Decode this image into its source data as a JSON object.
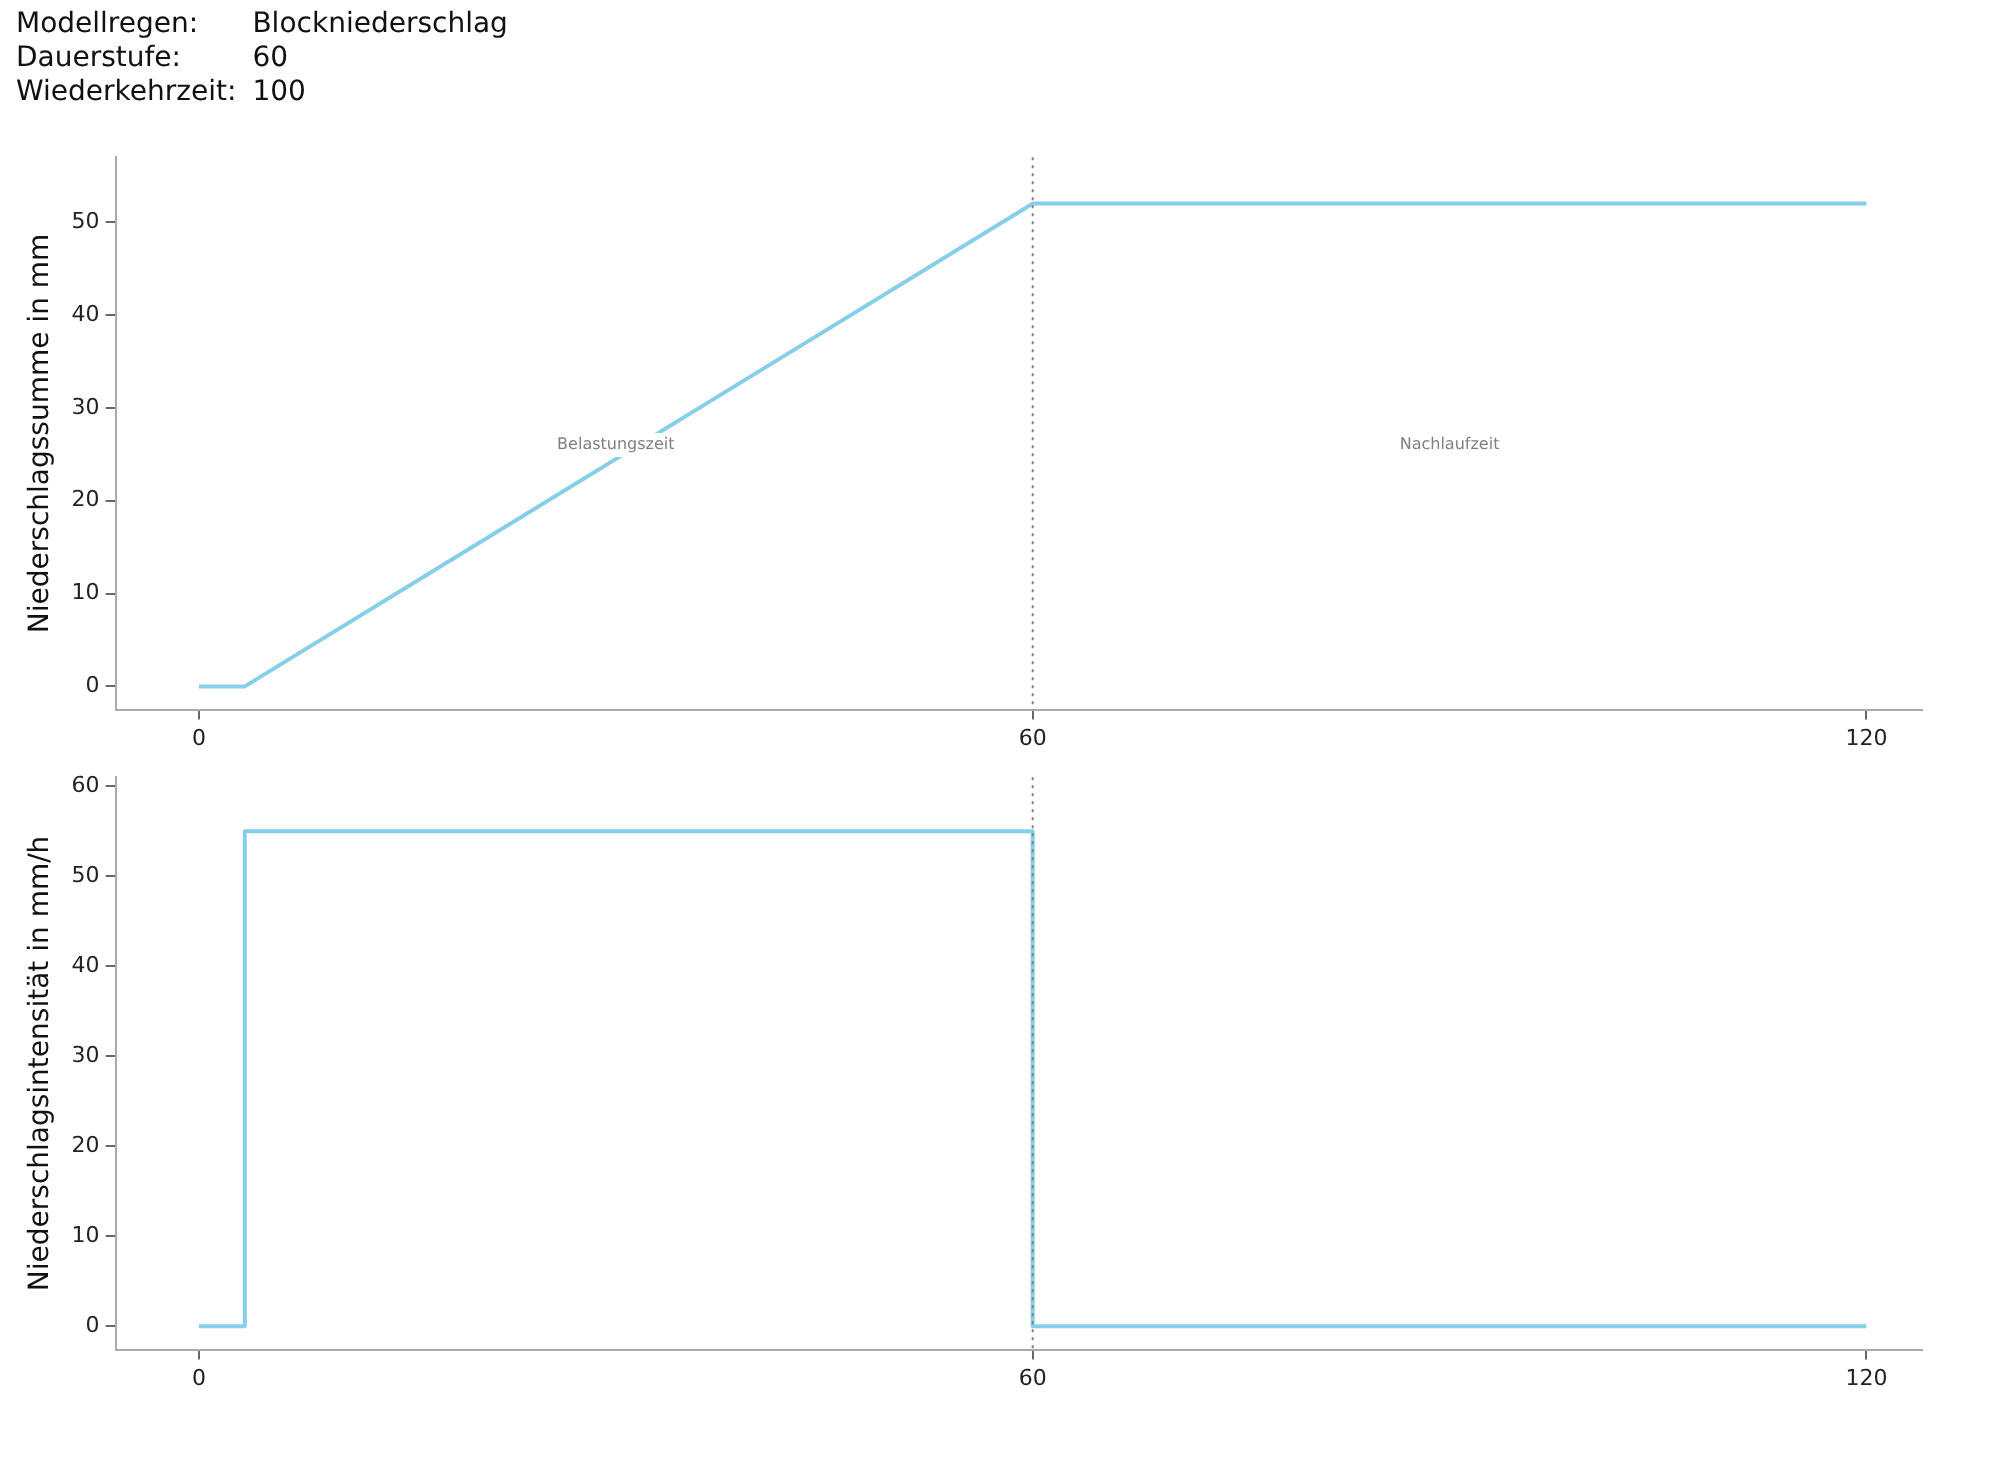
{
  "chart_data": [
    {
      "type": "line",
      "ylabel": "Niederschlagssumme in mm",
      "x": [
        0,
        3.3,
        60,
        120
      ],
      "series": [
        {
          "color": "#87ceeb",
          "values": [
            0,
            0,
            52,
            52
          ]
        }
      ],
      "xlim": [
        -6,
        124
      ],
      "xticks": [
        0,
        60,
        120
      ],
      "ylim": [
        -2.5,
        57
      ],
      "yticks": [
        0,
        10,
        20,
        30,
        40,
        50
      ],
      "grid": false,
      "legend": false,
      "ref_lines": [
        {
          "axis": "x",
          "value": 60,
          "color": "#808080",
          "line_style": "dotted"
        }
      ],
      "annotations": [
        "Modellregen:",
        "Blockniederschlag",
        "Dauerstufe:",
        "60",
        "Wiederkehrzeit:",
        "100",
        "Belastungszeit",
        "Nachlaufzeit"
      ]
    },
    {
      "type": "step",
      "ylabel": "Niederschlagsintensität in mm/h",
      "x": [
        0,
        3.3,
        60,
        120
      ],
      "series": [
        {
          "color": "#87ceeb",
          "values": [
            0,
            55,
            0,
            0
          ]
        }
      ],
      "xlim": [
        -6,
        124
      ],
      "xticks": [
        0,
        60,
        120
      ],
      "ylim": [
        -2.6,
        61
      ],
      "yticks": [
        0,
        10,
        20,
        30,
        40,
        50,
        60
      ],
      "grid": false,
      "legend": false,
      "ref_lines": [
        {
          "axis": "x",
          "value": 60,
          "color": "#808080",
          "line_style": "dotted"
        }
      ]
    }
  ]
}
